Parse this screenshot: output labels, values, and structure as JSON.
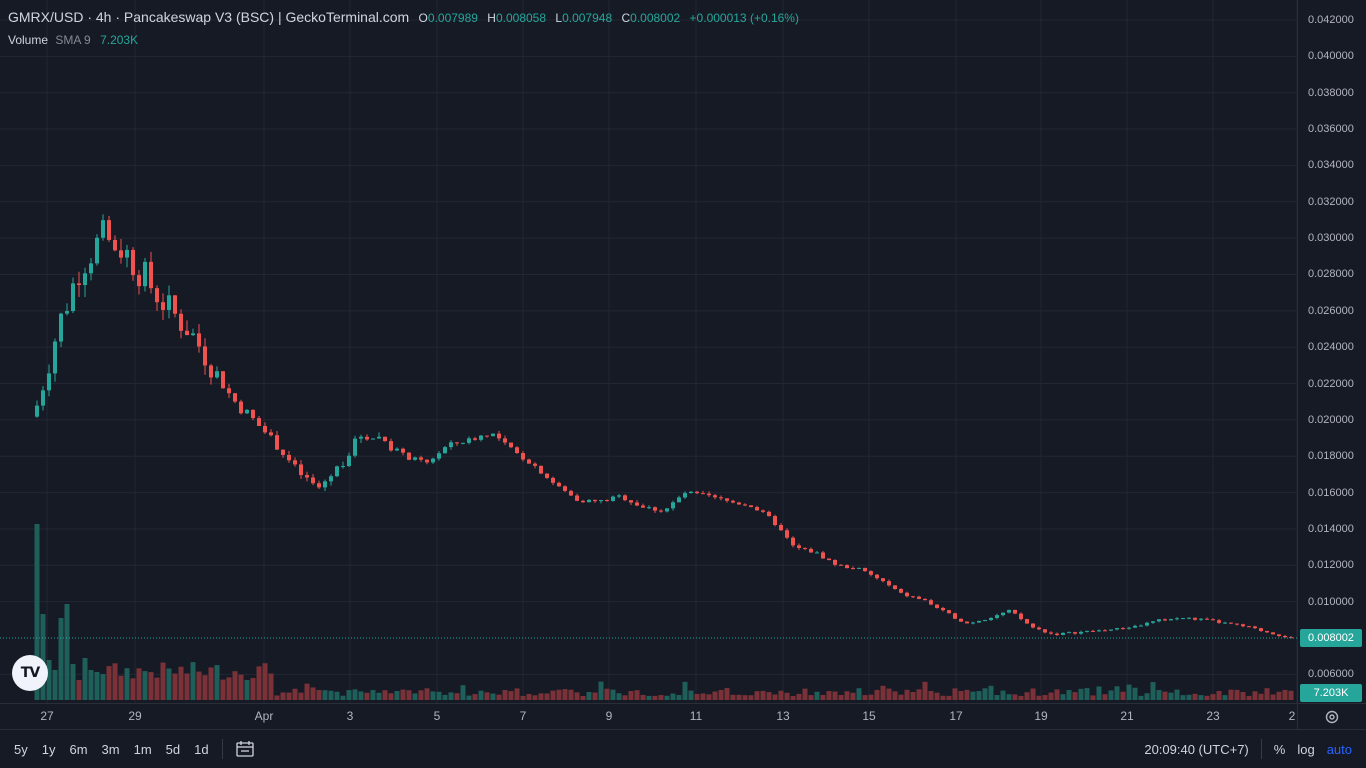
{
  "legend": {
    "title": "GMRX/USD · 4h · Pancakeswap V3 (BSC) | GeckoTerminal.com",
    "open_key": "O",
    "open": "0.007989",
    "high_key": "H",
    "high": "0.008058",
    "low_key": "L",
    "low": "0.007948",
    "close_key": "C",
    "close": "0.008002",
    "change": "+0.000013 (+0.16%)"
  },
  "volume_legend": {
    "name": "Volume",
    "sma": "SMA 9",
    "value": "7.203K"
  },
  "colors": {
    "up": "#26a69a",
    "down": "#ef5350",
    "up_volume": "#1f5f5a",
    "down_volume": "#7a3238",
    "background": "#161a25",
    "grid": "#232733"
  },
  "price_axis": {
    "ticks": [
      "0.042000",
      "0.040000",
      "0.038000",
      "0.036000",
      "0.034000",
      "0.032000",
      "0.030000",
      "0.028000",
      "0.026000",
      "0.024000",
      "0.022000",
      "0.020000",
      "0.018000",
      "0.016000",
      "0.014000",
      "0.012000",
      "0.010000",
      "0.006000"
    ],
    "current_price_label": "0.008002",
    "volume_label": "7.203K"
  },
  "time_axis": {
    "ticks": [
      "27",
      "29",
      "Apr",
      "3",
      "5",
      "7",
      "9",
      "11",
      "13",
      "15",
      "17",
      "19",
      "21",
      "23",
      "2"
    ]
  },
  "bottom_bar": {
    "ranges": [
      "5y",
      "1y",
      "6m",
      "3m",
      "1m",
      "5d",
      "1d"
    ],
    "time": "20:09:40 (UTC+7)",
    "percent": "%",
    "log": "log",
    "auto": "auto"
  },
  "icons": {
    "logo": "tradingview-logo-icon",
    "calendar": "calendar-range-icon",
    "settings": "gear-icon"
  },
  "chart_data": {
    "type": "candlestick",
    "title": "GMRX/USD · 4h · Pancakeswap V3 (BSC)",
    "ylim": [
      0.0055,
      0.043
    ],
    "current_price": 0.008002,
    "x_start": "Mar 27",
    "x_end": "Apr 24",
    "price_path": [
      [
        0,
        0.0208
      ],
      [
        1,
        0.0252
      ],
      [
        2,
        0.0285
      ],
      [
        3,
        0.03
      ],
      [
        4,
        0.0294
      ],
      [
        5,
        0.0278
      ],
      [
        6,
        0.0262
      ],
      [
        7,
        0.025
      ],
      [
        8,
        0.0232
      ],
      [
        9,
        0.0212
      ],
      [
        10,
        0.02
      ],
      [
        11,
        0.0188
      ],
      [
        12,
        0.0172
      ],
      [
        13,
        0.0162
      ],
      [
        14,
        0.0175
      ],
      [
        15,
        0.0192
      ],
      [
        16,
        0.019
      ],
      [
        17,
        0.018
      ],
      [
        18,
        0.0176
      ],
      [
        19,
        0.0186
      ],
      [
        20,
        0.0189
      ],
      [
        21,
        0.0193
      ],
      [
        22,
        0.0183
      ],
      [
        23,
        0.0175
      ],
      [
        24,
        0.0164
      ],
      [
        25,
        0.0156
      ],
      [
        26,
        0.0155
      ],
      [
        27,
        0.0158
      ],
      [
        28,
        0.0152
      ],
      [
        29,
        0.015
      ],
      [
        30,
        0.016
      ],
      [
        31,
        0.0158
      ],
      [
        32,
        0.0155
      ],
      [
        33,
        0.0153
      ],
      [
        34,
        0.0145
      ],
      [
        35,
        0.013
      ],
      [
        36,
        0.0127
      ],
      [
        37,
        0.012
      ],
      [
        38,
        0.0118
      ],
      [
        39,
        0.0112
      ],
      [
        40,
        0.0104
      ],
      [
        41,
        0.0101
      ],
      [
        42,
        0.0094
      ],
      [
        43,
        0.0088
      ],
      [
        44,
        0.0091
      ],
      [
        45,
        0.0095
      ],
      [
        46,
        0.0086
      ],
      [
        47,
        0.0082
      ],
      [
        48,
        0.0083
      ],
      [
        49,
        0.0084
      ],
      [
        50,
        0.0085
      ],
      [
        51,
        0.0087
      ],
      [
        52,
        0.009
      ],
      [
        53,
        0.0091
      ],
      [
        54,
        0.009
      ],
      [
        55,
        0.0088
      ],
      [
        56,
        0.0086
      ],
      [
        57,
        0.0083
      ],
      [
        58,
        0.008
      ]
    ],
    "volume_series": {
      "name": "Volume",
      "peaks": [
        0.0142,
        0.0098,
        0.0093
      ],
      "last": "7.203K"
    }
  }
}
